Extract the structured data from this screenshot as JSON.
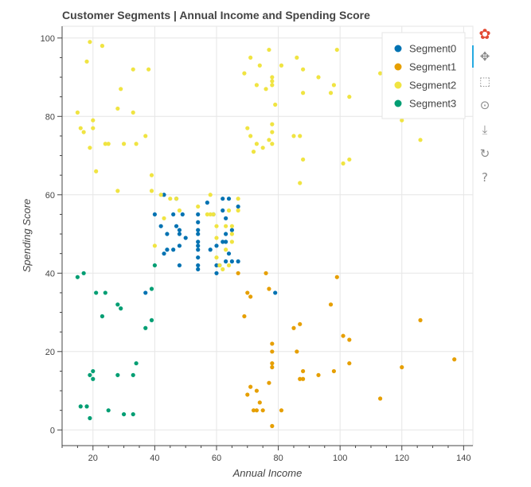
{
  "colors": {
    "Segment0": "#0072B2",
    "Segment1": "#E69F00",
    "Segment2": "#F0E442",
    "Segment3": "#009E73",
    "axis": "#444444",
    "grid": "#e6e6e6",
    "border": "#e5e5e5"
  },
  "toolbar": {
    "tools": [
      {
        "name": "bokeh-logo-icon",
        "glyph": "✿"
      },
      {
        "name": "pan-tool-icon",
        "glyph": "✥"
      },
      {
        "name": "box-zoom-tool-icon",
        "glyph": "⬚"
      },
      {
        "name": "wheel-zoom-tool-icon",
        "glyph": "⊙"
      },
      {
        "name": "save-tool-icon",
        "glyph": "⤓"
      },
      {
        "name": "reset-tool-icon",
        "glyph": "↻"
      },
      {
        "name": "help-tool-icon",
        "glyph": "?"
      }
    ]
  },
  "chart_data": {
    "type": "scatter",
    "title": "Customer Segments | Annual Income and Spending Score",
    "xlabel": "Annual Income",
    "ylabel": "Spending Score",
    "xlim": [
      10,
      143
    ],
    "ylim": [
      -4,
      103
    ],
    "xticks": [
      20,
      40,
      60,
      80,
      100,
      120,
      140
    ],
    "yticks": [
      0,
      20,
      40,
      60,
      80,
      100
    ],
    "legend_position": "top-right",
    "series": [
      {
        "name": "Segment0",
        "points": [
          [
            40,
            55
          ],
          [
            42,
            52
          ],
          [
            43,
            45
          ],
          [
            43,
            60
          ],
          [
            44,
            50
          ],
          [
            44,
            46
          ],
          [
            46,
            46
          ],
          [
            46,
            55
          ],
          [
            47,
            52
          ],
          [
            47,
            59
          ],
          [
            48,
            51
          ],
          [
            48,
            47
          ],
          [
            48,
            50
          ],
          [
            48,
            42
          ],
          [
            49,
            55
          ],
          [
            50,
            49
          ],
          [
            54,
            53
          ],
          [
            54,
            50
          ],
          [
            54,
            48
          ],
          [
            54,
            47
          ],
          [
            54,
            46
          ],
          [
            54,
            44
          ],
          [
            54,
            42
          ],
          [
            54,
            41
          ],
          [
            54,
            55
          ],
          [
            54,
            51
          ],
          [
            57,
            58
          ],
          [
            58,
            46
          ],
          [
            59,
            55
          ],
          [
            60,
            47
          ],
          [
            60,
            40
          ],
          [
            60,
            42
          ],
          [
            61,
            42
          ],
          [
            62,
            48
          ],
          [
            62,
            59
          ],
          [
            62,
            56
          ],
          [
            63,
            50
          ],
          [
            63,
            48
          ],
          [
            63,
            43
          ],
          [
            63,
            54
          ],
          [
            64,
            45
          ],
          [
            64,
            59
          ],
          [
            65,
            43
          ],
          [
            65,
            51
          ],
          [
            67,
            43
          ],
          [
            67,
            57
          ],
          [
            79,
            35
          ],
          [
            37,
            35
          ]
        ]
      },
      {
        "name": "Segment1",
        "points": [
          [
            67,
            40
          ],
          [
            69,
            29
          ],
          [
            70,
            35
          ],
          [
            70,
            9
          ],
          [
            71,
            34
          ],
          [
            71,
            11
          ],
          [
            72,
            5
          ],
          [
            73,
            10
          ],
          [
            73,
            5
          ],
          [
            74,
            7
          ],
          [
            75,
            5
          ],
          [
            76,
            40
          ],
          [
            77,
            12
          ],
          [
            77,
            36
          ],
          [
            78,
            22
          ],
          [
            78,
            20
          ],
          [
            78,
            17
          ],
          [
            78,
            16
          ],
          [
            78,
            1
          ],
          [
            81,
            5
          ],
          [
            85,
            26
          ],
          [
            86,
            20
          ],
          [
            87,
            27
          ],
          [
            87,
            13
          ],
          [
            88,
            15
          ],
          [
            88,
            13
          ],
          [
            93,
            14
          ],
          [
            97,
            32
          ],
          [
            98,
            15
          ],
          [
            99,
            39
          ],
          [
            101,
            24
          ],
          [
            103,
            17
          ],
          [
            103,
            23
          ],
          [
            113,
            8
          ],
          [
            120,
            16
          ],
          [
            126,
            28
          ],
          [
            137,
            18
          ]
        ]
      },
      {
        "name": "Segment2",
        "points": [
          [
            15,
            81
          ],
          [
            16,
            77
          ],
          [
            17,
            76
          ],
          [
            18,
            94
          ],
          [
            19,
            99
          ],
          [
            19,
            72
          ],
          [
            20,
            79
          ],
          [
            20,
            77
          ],
          [
            21,
            66
          ],
          [
            23,
            98
          ],
          [
            24,
            73
          ],
          [
            25,
            73
          ],
          [
            28,
            82
          ],
          [
            28,
            61
          ],
          [
            29,
            87
          ],
          [
            30,
            73
          ],
          [
            33,
            92
          ],
          [
            33,
            81
          ],
          [
            34,
            73
          ],
          [
            37,
            75
          ],
          [
            38,
            92
          ],
          [
            39,
            65
          ],
          [
            39,
            61
          ],
          [
            40,
            47
          ],
          [
            42,
            60
          ],
          [
            43,
            54
          ],
          [
            45,
            59
          ],
          [
            47,
            59
          ],
          [
            48,
            56
          ],
          [
            54,
            57
          ],
          [
            57,
            55
          ],
          [
            58,
            60
          ],
          [
            58,
            55
          ],
          [
            59,
            55
          ],
          [
            60,
            52
          ],
          [
            60,
            49
          ],
          [
            60,
            44
          ],
          [
            61,
            42
          ],
          [
            62,
            41
          ],
          [
            63,
            52
          ],
          [
            63,
            46
          ],
          [
            64,
            42
          ],
          [
            64,
            56
          ],
          [
            65,
            50
          ],
          [
            65,
            48
          ],
          [
            65,
            52
          ],
          [
            67,
            56
          ],
          [
            67,
            59
          ],
          [
            69,
            91
          ],
          [
            70,
            77
          ],
          [
            71,
            95
          ],
          [
            71,
            75
          ],
          [
            72,
            71
          ],
          [
            73,
            88
          ],
          [
            73,
            73
          ],
          [
            74,
            93
          ],
          [
            75,
            72
          ],
          [
            76,
            87
          ],
          [
            77,
            97
          ],
          [
            77,
            74
          ],
          [
            78,
            90
          ],
          [
            78,
            89
          ],
          [
            78,
            88
          ],
          [
            78,
            78
          ],
          [
            78,
            76
          ],
          [
            78,
            73
          ],
          [
            79,
            83
          ],
          [
            81,
            93
          ],
          [
            85,
            75
          ],
          [
            86,
            95
          ],
          [
            87,
            75
          ],
          [
            87,
            63
          ],
          [
            88,
            92
          ],
          [
            88,
            86
          ],
          [
            88,
            69
          ],
          [
            93,
            90
          ],
          [
            97,
            86
          ],
          [
            98,
            88
          ],
          [
            99,
            97
          ],
          [
            101,
            68
          ],
          [
            103,
            85
          ],
          [
            103,
            69
          ],
          [
            113,
            91
          ],
          [
            120,
            79
          ],
          [
            126,
            74
          ]
        ]
      },
      {
        "name": "Segment3",
        "points": [
          [
            15,
            39
          ],
          [
            16,
            6
          ],
          [
            17,
            40
          ],
          [
            18,
            6
          ],
          [
            19,
            3
          ],
          [
            19,
            14
          ],
          [
            20,
            15
          ],
          [
            20,
            13
          ],
          [
            21,
            35
          ],
          [
            23,
            29
          ],
          [
            24,
            35
          ],
          [
            25,
            5
          ],
          [
            28,
            14
          ],
          [
            28,
            32
          ],
          [
            29,
            31
          ],
          [
            30,
            4
          ],
          [
            33,
            4
          ],
          [
            33,
            14
          ],
          [
            34,
            17
          ],
          [
            37,
            26
          ],
          [
            39,
            36
          ],
          [
            39,
            28
          ],
          [
            40,
            42
          ]
        ]
      }
    ]
  }
}
